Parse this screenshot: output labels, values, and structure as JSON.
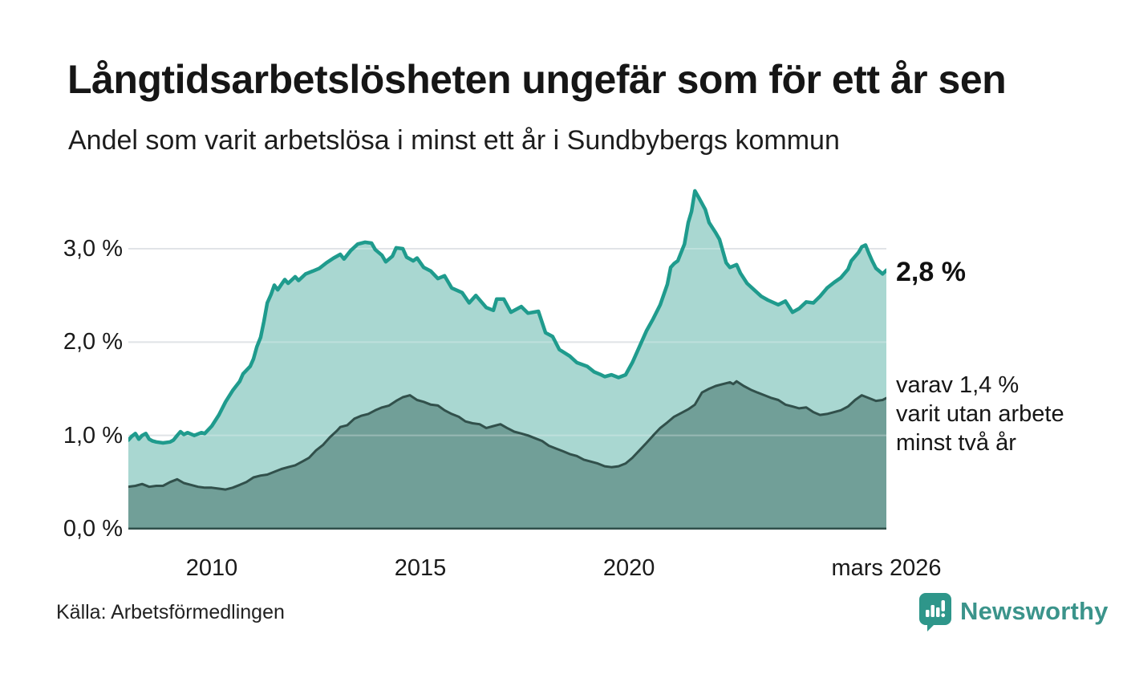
{
  "header": {
    "title": "Långtidsarbetslösheten ungefär som för ett år sen",
    "subtitle": "Andel som varit arbetslösa i minst ett år i Sundbybergs kommun"
  },
  "footer": {
    "source": "Källa: Arbetsförmedlingen",
    "brand": "Newsworthy"
  },
  "colors": {
    "line_primary": "#1f9b8d",
    "fill_primary": "#a2d4cd",
    "line_secondary": "#31504b",
    "fill_secondary": "#6f9d96",
    "gridline": "#d6dade",
    "brand_teal": "#2e968a"
  },
  "chart_data": {
    "type": "area",
    "title": "Långtidsarbetslösheten ungefär som för ett år sen",
    "subtitle": "Andel som varit arbetslösa i minst ett år i Sundbybergs kommun",
    "x_unit": "decimal_year",
    "x_range": [
      2008.0,
      2026.17
    ],
    "ylim": [
      0,
      3.69
    ],
    "grid": true,
    "legend_position": "none",
    "y_ticks": [
      {
        "value": 0,
        "label": "0,0 %"
      },
      {
        "value": 1,
        "label": "1,0 %"
      },
      {
        "value": 2,
        "label": "2,0 %"
      },
      {
        "value": 3,
        "label": "3,0 %"
      }
    ],
    "x_ticks": [
      {
        "value": 2010,
        "label": "2010"
      },
      {
        "value": 2015,
        "label": "2015"
      },
      {
        "value": 2020,
        "label": "2020"
      },
      {
        "value": 2026.17,
        "label": "mars 2026"
      }
    ],
    "annotations": {
      "primary_end_value": "2,8 %",
      "secondary_lines": [
        "varav 1,4 %",
        "varit utan arbete",
        "minst två år"
      ]
    },
    "series": [
      {
        "name": "Andel arbetslösa minst ett år",
        "end_value_pct": 2.8,
        "points": [
          [
            2008.0,
            0.95
          ],
          [
            2008.08,
            0.99
          ],
          [
            2008.17,
            1.02
          ],
          [
            2008.25,
            0.96
          ],
          [
            2008.33,
            1.0
          ],
          [
            2008.42,
            1.02
          ],
          [
            2008.5,
            0.96
          ],
          [
            2008.58,
            0.94
          ],
          [
            2008.67,
            0.93
          ],
          [
            2008.83,
            0.92
          ],
          [
            2009.0,
            0.93
          ],
          [
            2009.08,
            0.95
          ],
          [
            2009.17,
            1.0
          ],
          [
            2009.25,
            1.04
          ],
          [
            2009.33,
            1.01
          ],
          [
            2009.42,
            1.03
          ],
          [
            2009.58,
            1.0
          ],
          [
            2009.75,
            1.03
          ],
          [
            2009.83,
            1.02
          ],
          [
            2010.0,
            1.1
          ],
          [
            2010.17,
            1.22
          ],
          [
            2010.33,
            1.36
          ],
          [
            2010.5,
            1.48
          ],
          [
            2010.67,
            1.58
          ],
          [
            2010.75,
            1.66
          ],
          [
            2010.92,
            1.74
          ],
          [
            2011.0,
            1.82
          ],
          [
            2011.08,
            1.95
          ],
          [
            2011.17,
            2.05
          ],
          [
            2011.25,
            2.22
          ],
          [
            2011.33,
            2.42
          ],
          [
            2011.42,
            2.51
          ],
          [
            2011.5,
            2.61
          ],
          [
            2011.58,
            2.56
          ],
          [
            2011.75,
            2.67
          ],
          [
            2011.83,
            2.63
          ],
          [
            2012.0,
            2.7
          ],
          [
            2012.08,
            2.66
          ],
          [
            2012.25,
            2.73
          ],
          [
            2012.42,
            2.76
          ],
          [
            2012.58,
            2.79
          ],
          [
            2012.75,
            2.85
          ],
          [
            2012.92,
            2.9
          ],
          [
            2013.08,
            2.94
          ],
          [
            2013.17,
            2.89
          ],
          [
            2013.33,
            2.98
          ],
          [
            2013.5,
            3.05
          ],
          [
            2013.67,
            3.07
          ],
          [
            2013.83,
            3.06
          ],
          [
            2013.92,
            2.99
          ],
          [
            2014.08,
            2.93
          ],
          [
            2014.17,
            2.86
          ],
          [
            2014.33,
            2.92
          ],
          [
            2014.42,
            3.01
          ],
          [
            2014.58,
            3.0
          ],
          [
            2014.67,
            2.91
          ],
          [
            2014.83,
            2.87
          ],
          [
            2014.92,
            2.9
          ],
          [
            2015.08,
            2.8
          ],
          [
            2015.25,
            2.76
          ],
          [
            2015.42,
            2.68
          ],
          [
            2015.58,
            2.71
          ],
          [
            2015.75,
            2.58
          ],
          [
            2016.0,
            2.53
          ],
          [
            2016.17,
            2.42
          ],
          [
            2016.33,
            2.5
          ],
          [
            2016.58,
            2.37
          ],
          [
            2016.75,
            2.34
          ],
          [
            2016.83,
            2.46
          ],
          [
            2017.0,
            2.46
          ],
          [
            2017.17,
            2.32
          ],
          [
            2017.42,
            2.38
          ],
          [
            2017.58,
            2.31
          ],
          [
            2017.83,
            2.33
          ],
          [
            2018.0,
            2.1
          ],
          [
            2018.17,
            2.06
          ],
          [
            2018.33,
            1.92
          ],
          [
            2018.58,
            1.85
          ],
          [
            2018.75,
            1.78
          ],
          [
            2019.0,
            1.74
          ],
          [
            2019.17,
            1.68
          ],
          [
            2019.33,
            1.65
          ],
          [
            2019.42,
            1.63
          ],
          [
            2019.58,
            1.65
          ],
          [
            2019.75,
            1.62
          ],
          [
            2019.92,
            1.65
          ],
          [
            2020.08,
            1.78
          ],
          [
            2020.25,
            1.95
          ],
          [
            2020.42,
            2.12
          ],
          [
            2020.58,
            2.25
          ],
          [
            2020.75,
            2.4
          ],
          [
            2020.92,
            2.62
          ],
          [
            2021.0,
            2.8
          ],
          [
            2021.08,
            2.84
          ],
          [
            2021.17,
            2.87
          ],
          [
            2021.33,
            3.05
          ],
          [
            2021.42,
            3.28
          ],
          [
            2021.5,
            3.4
          ],
          [
            2021.58,
            3.62
          ],
          [
            2021.67,
            3.55
          ],
          [
            2021.83,
            3.42
          ],
          [
            2021.92,
            3.28
          ],
          [
            2022.08,
            3.17
          ],
          [
            2022.17,
            3.1
          ],
          [
            2022.33,
            2.85
          ],
          [
            2022.42,
            2.8
          ],
          [
            2022.58,
            2.83
          ],
          [
            2022.67,
            2.74
          ],
          [
            2022.83,
            2.63
          ],
          [
            2023.0,
            2.56
          ],
          [
            2023.17,
            2.49
          ],
          [
            2023.33,
            2.45
          ],
          [
            2023.58,
            2.4
          ],
          [
            2023.75,
            2.44
          ],
          [
            2023.92,
            2.32
          ],
          [
            2024.08,
            2.36
          ],
          [
            2024.25,
            2.43
          ],
          [
            2024.42,
            2.42
          ],
          [
            2024.58,
            2.49
          ],
          [
            2024.75,
            2.58
          ],
          [
            2024.92,
            2.64
          ],
          [
            2025.08,
            2.69
          ],
          [
            2025.25,
            2.78
          ],
          [
            2025.33,
            2.87
          ],
          [
            2025.5,
            2.96
          ],
          [
            2025.58,
            3.02
          ],
          [
            2025.67,
            3.04
          ],
          [
            2025.75,
            2.95
          ],
          [
            2025.83,
            2.87
          ],
          [
            2025.92,
            2.79
          ],
          [
            2026.0,
            2.76
          ],
          [
            2026.08,
            2.73
          ],
          [
            2026.17,
            2.77
          ]
        ]
      },
      {
        "name": "varav utan arbete minst två år",
        "end_value_pct": 1.4,
        "points": [
          [
            2008.0,
            0.45
          ],
          [
            2008.17,
            0.46
          ],
          [
            2008.33,
            0.48
          ],
          [
            2008.5,
            0.45
          ],
          [
            2008.67,
            0.46
          ],
          [
            2008.83,
            0.46
          ],
          [
            2009.0,
            0.5
          ],
          [
            2009.17,
            0.53
          ],
          [
            2009.33,
            0.49
          ],
          [
            2009.5,
            0.47
          ],
          [
            2009.67,
            0.45
          ],
          [
            2009.83,
            0.44
          ],
          [
            2010.0,
            0.44
          ],
          [
            2010.17,
            0.43
          ],
          [
            2010.33,
            0.42
          ],
          [
            2010.5,
            0.44
          ],
          [
            2010.67,
            0.47
          ],
          [
            2010.83,
            0.5
          ],
          [
            2011.0,
            0.55
          ],
          [
            2011.17,
            0.57
          ],
          [
            2011.33,
            0.58
          ],
          [
            2011.5,
            0.61
          ],
          [
            2011.67,
            0.64
          ],
          [
            2011.83,
            0.66
          ],
          [
            2012.0,
            0.68
          ],
          [
            2012.17,
            0.72
          ],
          [
            2012.33,
            0.76
          ],
          [
            2012.5,
            0.84
          ],
          [
            2012.67,
            0.9
          ],
          [
            2012.83,
            0.98
          ],
          [
            2013.0,
            1.05
          ],
          [
            2013.08,
            1.09
          ],
          [
            2013.25,
            1.11
          ],
          [
            2013.42,
            1.18
          ],
          [
            2013.58,
            1.21
          ],
          [
            2013.75,
            1.23
          ],
          [
            2013.92,
            1.27
          ],
          [
            2014.08,
            1.3
          ],
          [
            2014.25,
            1.32
          ],
          [
            2014.42,
            1.37
          ],
          [
            2014.58,
            1.41
          ],
          [
            2014.75,
            1.43
          ],
          [
            2014.92,
            1.38
          ],
          [
            2015.08,
            1.36
          ],
          [
            2015.25,
            1.33
          ],
          [
            2015.42,
            1.32
          ],
          [
            2015.58,
            1.27
          ],
          [
            2015.75,
            1.23
          ],
          [
            2015.92,
            1.2
          ],
          [
            2016.08,
            1.15
          ],
          [
            2016.25,
            1.13
          ],
          [
            2016.42,
            1.12
          ],
          [
            2016.58,
            1.08
          ],
          [
            2016.75,
            1.1
          ],
          [
            2016.92,
            1.12
          ],
          [
            2017.08,
            1.08
          ],
          [
            2017.25,
            1.04
          ],
          [
            2017.42,
            1.02
          ],
          [
            2017.58,
            1.0
          ],
          [
            2017.75,
            0.97
          ],
          [
            2017.92,
            0.94
          ],
          [
            2018.08,
            0.89
          ],
          [
            2018.25,
            0.86
          ],
          [
            2018.42,
            0.83
          ],
          [
            2018.58,
            0.8
          ],
          [
            2018.75,
            0.78
          ],
          [
            2018.92,
            0.74
          ],
          [
            2019.08,
            0.72
          ],
          [
            2019.25,
            0.7
          ],
          [
            2019.42,
            0.67
          ],
          [
            2019.58,
            0.66
          ],
          [
            2019.75,
            0.67
          ],
          [
            2019.92,
            0.7
          ],
          [
            2020.08,
            0.76
          ],
          [
            2020.25,
            0.84
          ],
          [
            2020.42,
            0.92
          ],
          [
            2020.58,
            1.0
          ],
          [
            2020.75,
            1.08
          ],
          [
            2020.92,
            1.14
          ],
          [
            2021.08,
            1.2
          ],
          [
            2021.25,
            1.24
          ],
          [
            2021.42,
            1.28
          ],
          [
            2021.58,
            1.33
          ],
          [
            2021.75,
            1.46
          ],
          [
            2021.92,
            1.5
          ],
          [
            2022.08,
            1.53
          ],
          [
            2022.25,
            1.55
          ],
          [
            2022.42,
            1.57
          ],
          [
            2022.5,
            1.55
          ],
          [
            2022.58,
            1.58
          ],
          [
            2022.75,
            1.53
          ],
          [
            2022.92,
            1.49
          ],
          [
            2023.08,
            1.46
          ],
          [
            2023.25,
            1.43
          ],
          [
            2023.42,
            1.4
          ],
          [
            2023.58,
            1.38
          ],
          [
            2023.75,
            1.33
          ],
          [
            2023.92,
            1.31
          ],
          [
            2024.08,
            1.29
          ],
          [
            2024.25,
            1.3
          ],
          [
            2024.42,
            1.25
          ],
          [
            2024.58,
            1.22
          ],
          [
            2024.75,
            1.23
          ],
          [
            2024.92,
            1.25
          ],
          [
            2025.08,
            1.27
          ],
          [
            2025.25,
            1.31
          ],
          [
            2025.42,
            1.38
          ],
          [
            2025.58,
            1.43
          ],
          [
            2025.75,
            1.4
          ],
          [
            2025.92,
            1.37
          ],
          [
            2026.08,
            1.38
          ],
          [
            2026.17,
            1.4
          ]
        ]
      }
    ]
  }
}
